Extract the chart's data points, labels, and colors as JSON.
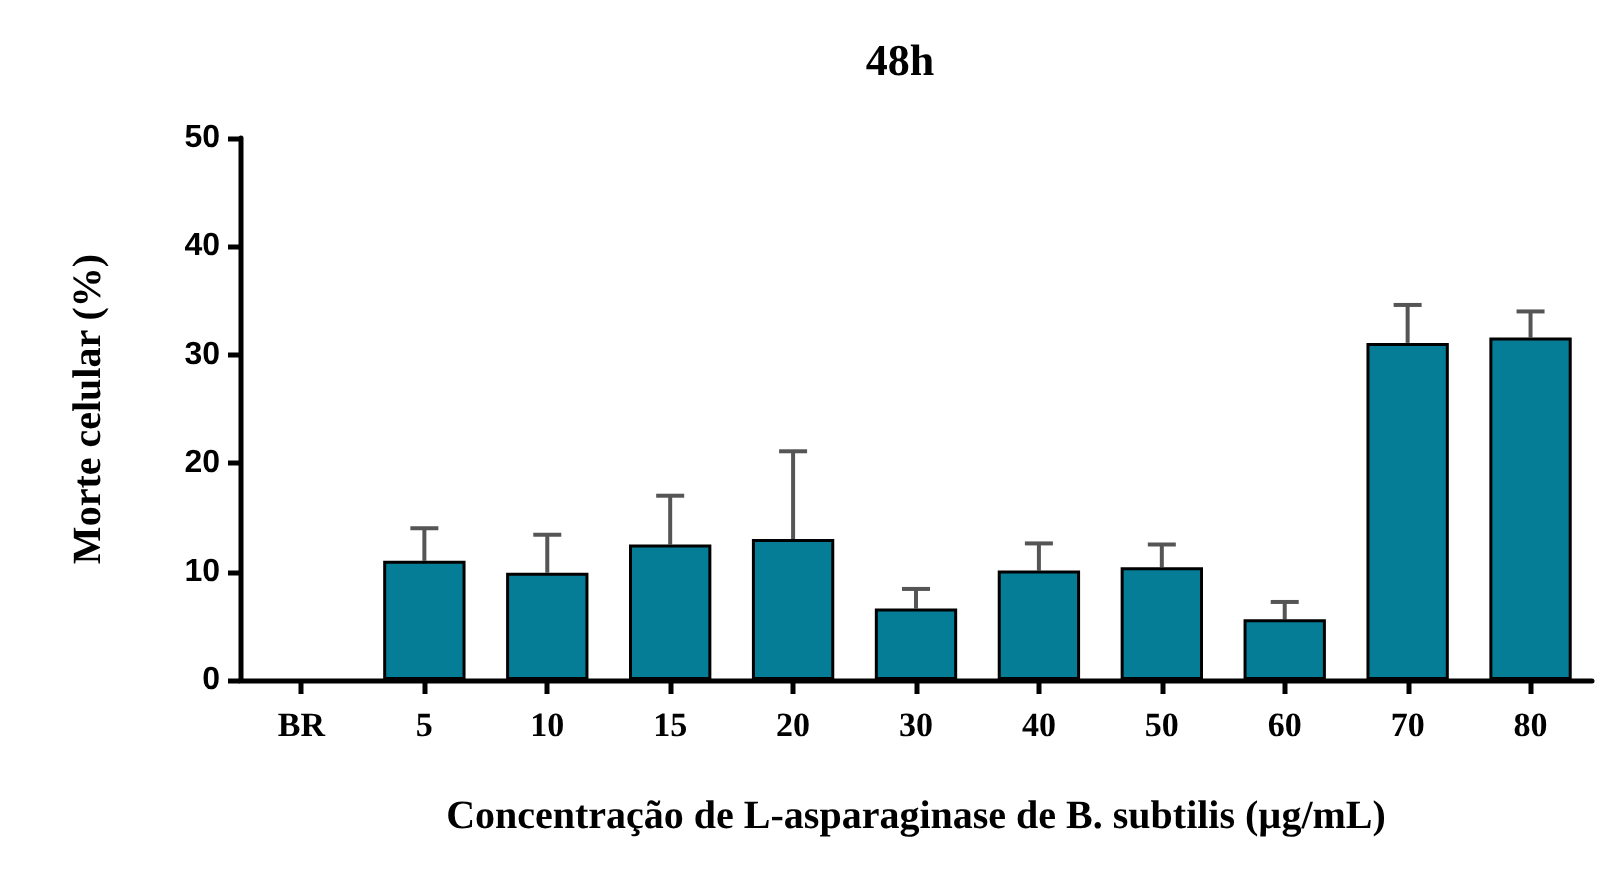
{
  "chart_data": {
    "type": "bar",
    "title": "48h",
    "xlabel": "Concentração de L-asparaginase de B. subtilis (µg/mL)",
    "ylabel": "Morte celular (%)",
    "categories": [
      "BR",
      "5",
      "10",
      "15",
      "20",
      "30",
      "40",
      "50",
      "60",
      "70",
      "80"
    ],
    "values": [
      null,
      11.0,
      9.9,
      12.5,
      13.0,
      6.6,
      10.1,
      10.4,
      5.6,
      31.1,
      31.6
    ],
    "errors": [
      null,
      3.0,
      3.5,
      4.5,
      8.1,
      1.8,
      2.5,
      2.1,
      1.6,
      3.5,
      2.4
    ],
    "color": "#057d96",
    "ylim": [
      0,
      50
    ],
    "yticks": [
      0,
      10,
      20,
      30,
      40,
      50
    ]
  }
}
